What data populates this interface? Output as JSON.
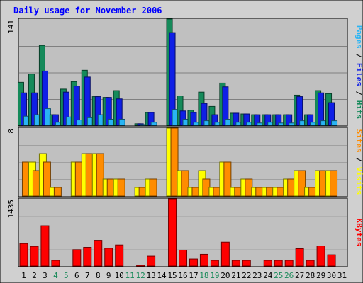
{
  "chart_data": {
    "type": "bar",
    "title": "Daily usage for November 2006",
    "categories": [
      "1",
      "2",
      "3",
      "4",
      "5",
      "6",
      "7",
      "8",
      "9",
      "10",
      "11",
      "12",
      "13",
      "14",
      "15",
      "16",
      "17",
      "18",
      "19",
      "20",
      "21",
      "22",
      "23",
      "24",
      "25",
      "26",
      "27",
      "28",
      "29",
      "30",
      "31"
    ],
    "weekend_days": [
      "4",
      "5",
      "11",
      "12",
      "18",
      "19",
      "25",
      "26"
    ],
    "panels": [
      {
        "id": "hits-files-pages",
        "ymax": 141,
        "ymax_label": "141",
        "side_label": [
          "Pages",
          "Files",
          "Hits"
        ],
        "series": [
          {
            "name": "Hits",
            "color": "#158a5a",
            "values": [
              57,
              68,
              106,
              14,
              48,
              58,
              73,
              38,
              37,
              46,
              0,
              2,
              17,
              0,
              141,
              39,
              20,
              44,
              25,
              56,
              16,
              15,
              14,
              14,
              14,
              14,
              40,
              14,
              46,
              42,
              0
            ]
          },
          {
            "name": "Files",
            "color": "#0f1fe6",
            "values": [
              43,
              43,
              72,
              14,
              44,
              52,
              64,
              38,
              37,
              35,
              0,
              2,
              17,
              0,
              123,
              19,
              17,
              29,
              14,
              51,
              16,
              15,
              14,
              14,
              14,
              14,
              38,
              14,
              43,
              30,
              0
            ]
          },
          {
            "name": "Pages",
            "color": "#29b4f4",
            "values": [
              12,
              14,
              22,
              4,
              11,
              7,
              10,
              14,
              8,
              8,
              0,
              1,
              4,
              0,
              21,
              8,
              4,
              6,
              4,
              8,
              4,
              4,
              3,
              4,
              3,
              3,
              6,
              4,
              6,
              6,
              0
            ]
          }
        ]
      },
      {
        "id": "visits-sites",
        "ymax": 8,
        "ymax_label": "8",
        "side_label": [
          "Sites",
          "Visits"
        ],
        "series": [
          {
            "name": "Visits",
            "color": "#ffff00",
            "values": [
              0,
              4,
              5,
              1,
              0,
              4,
              5,
              5,
              2,
              2,
              0,
              1,
              2,
              0,
              8,
              3,
              1,
              3,
              1,
              4,
              1,
              2,
              1,
              1,
              1,
              2,
              3,
              1,
              3,
              3,
              0
            ]
          },
          {
            "name": "Sites",
            "color": "#ff8c00",
            "values": [
              4,
              3,
              4,
              1,
              0,
              4,
              5,
              5,
              2,
              2,
              0,
              1,
              2,
              0,
              8,
              3,
              1,
              2,
              1,
              4,
              1,
              2,
              1,
              1,
              1,
              2,
              3,
              1,
              3,
              3,
              0
            ]
          }
        ]
      },
      {
        "id": "kbytes",
        "ymax": 1435,
        "ymax_label": "1435",
        "side_label": [
          "KBytes"
        ],
        "series": [
          {
            "name": "KBytes",
            "color": "#ff0000",
            "values": [
              480,
              420,
              860,
              120,
              0,
              350,
              400,
              550,
              380,
              450,
              0,
              20,
              210,
              0,
              1435,
              340,
              150,
              250,
              120,
              510,
              120,
              120,
              0,
              120,
              120,
              120,
              370,
              120,
              430,
              240,
              0
            ]
          }
        ]
      }
    ]
  }
}
